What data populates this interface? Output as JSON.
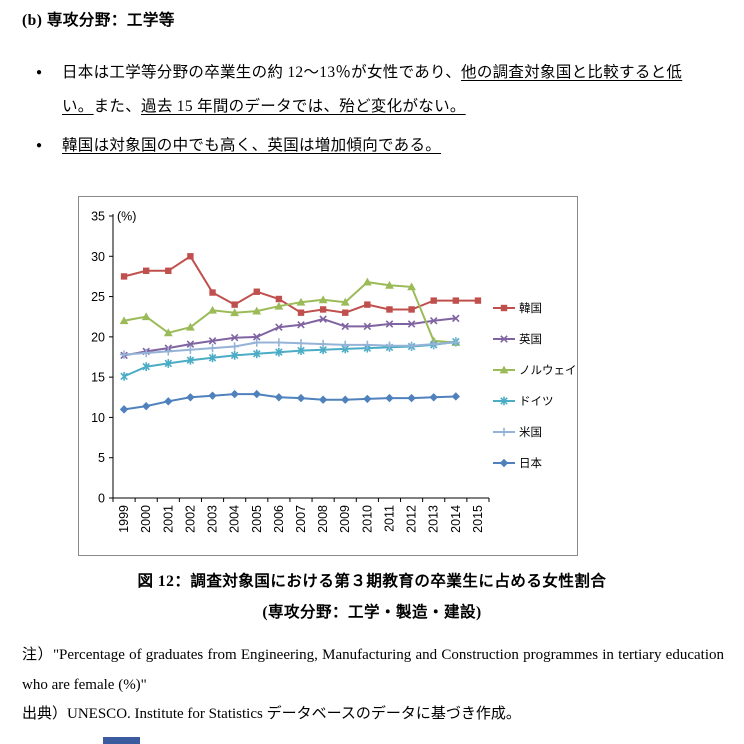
{
  "page": {
    "heading": "(b) 専攻分野：工学等",
    "bullet_marker": "●",
    "bullets": [
      {
        "segments": [
          {
            "text": "日本は工学等分野の卒業生の約 12～13％が女性であり、",
            "underline": false
          },
          {
            "text": "他の調査対象国と比較すると低い。",
            "underline": true
          },
          {
            "text": "また、",
            "underline": false
          },
          {
            "text": "過去 15 年間のデータでは、殆ど変化がない。",
            "underline": true
          }
        ]
      },
      {
        "segments": [
          {
            "text": "韓国は対象国の中でも高く、英国は増加傾向である。",
            "underline": true
          }
        ]
      }
    ],
    "caption": {
      "line1": "図 12：調査対象国における第３期教育の卒業生に占める女性割合",
      "line2": "(専攻分野：工学・製造・建設)"
    },
    "note": {
      "label": "注）",
      "text": "\"Percentage of graduates from Engineering, Manufacturing and Construction programmes in tertiary education who are female (%)\""
    },
    "source": {
      "label": "出典）",
      "text": "UNESCO. Institute for Statistics データベースのデータに基づき作成。"
    }
  },
  "chart_data": {
    "type": "line",
    "title": "",
    "ylabel": "(%)",
    "xlabel": "",
    "ylim": [
      0,
      35
    ],
    "ytick_step": 5,
    "grid": false,
    "legend_position": "right",
    "x": [
      "1999",
      "2000",
      "2001",
      "2002",
      "2003",
      "2004",
      "2005",
      "2006",
      "2007",
      "2008",
      "2009",
      "2010",
      "2011",
      "2012",
      "2013",
      "2014",
      "2015"
    ],
    "series": [
      {
        "name": "韓国",
        "color": "#C0504D",
        "marker": "square",
        "values": [
          27.5,
          28.2,
          28.2,
          30.0,
          25.5,
          24.0,
          25.6,
          24.7,
          23.0,
          23.4,
          23.0,
          24.0,
          23.4,
          23.4,
          24.5,
          24.5,
          24.5
        ]
      },
      {
        "name": "英国",
        "color": "#8064A2",
        "marker": "x",
        "values": [
          17.7,
          18.2,
          18.6,
          19.1,
          19.5,
          19.9,
          20.0,
          21.2,
          21.5,
          22.2,
          21.3,
          21.3,
          21.6,
          21.6,
          22.0,
          22.3,
          null
        ]
      },
      {
        "name": "ノルウェイ",
        "color": "#9BBB59",
        "marker": "triangle",
        "values": [
          22.0,
          22.5,
          20.5,
          21.2,
          23.3,
          23.0,
          23.2,
          23.8,
          24.3,
          24.6,
          24.3,
          26.8,
          26.4,
          26.2,
          19.5,
          19.3,
          null
        ]
      },
      {
        "name": "ドイツ",
        "color": "#4BACC6",
        "marker": "asterisk",
        "values": [
          15.1,
          16.3,
          16.7,
          17.1,
          17.4,
          17.7,
          17.9,
          18.1,
          18.3,
          18.4,
          18.5,
          18.6,
          18.7,
          18.8,
          19.0,
          19.4,
          null
        ]
      },
      {
        "name": "米国",
        "color": "#95B3D7",
        "marker": "plus",
        "values": [
          17.8,
          18.0,
          18.2,
          18.4,
          18.6,
          18.8,
          19.3,
          19.3,
          19.2,
          19.1,
          19.0,
          19.0,
          18.9,
          18.9,
          19.1,
          19.3,
          null
        ]
      },
      {
        "name": "日本",
        "color": "#4F81BD",
        "marker": "diamond",
        "values": [
          11.0,
          11.4,
          12.0,
          12.5,
          12.7,
          12.9,
          12.9,
          12.5,
          12.4,
          12.2,
          12.2,
          12.3,
          12.4,
          12.4,
          12.5,
          12.6,
          null
        ]
      }
    ]
  },
  "artifact": {
    "color": "#3A5C9E"
  }
}
